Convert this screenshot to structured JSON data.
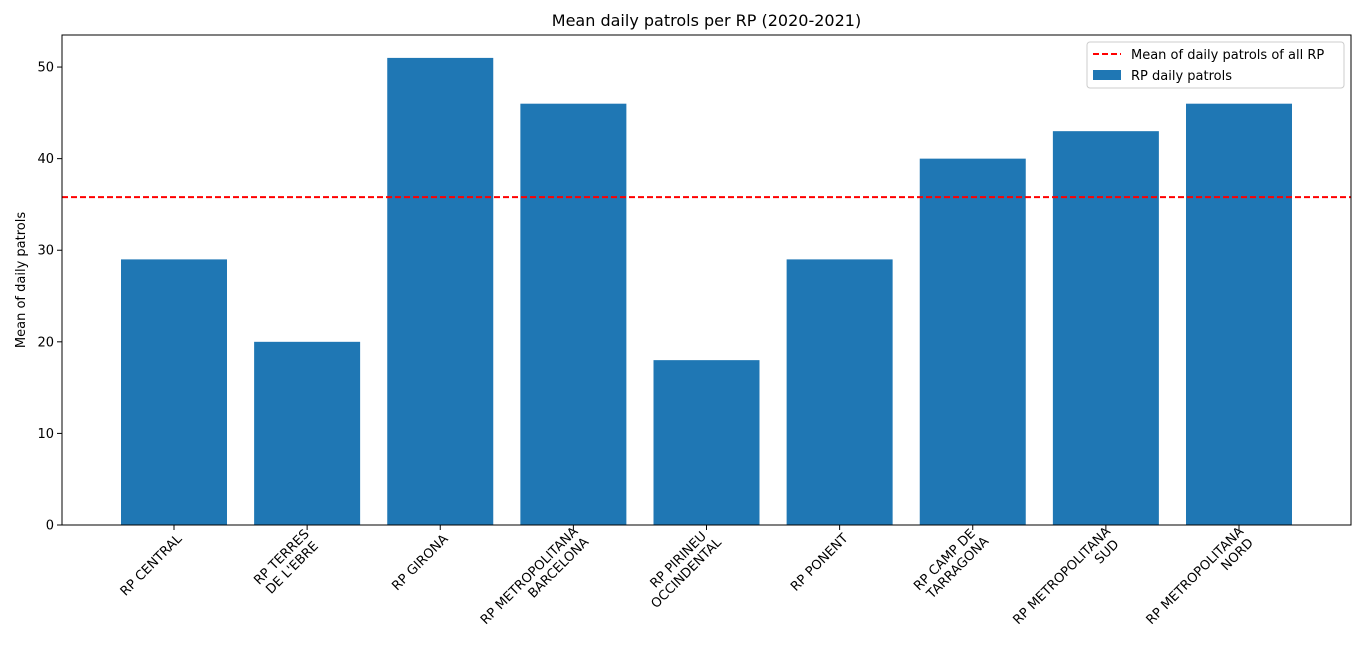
{
  "chart_data": {
    "type": "bar",
    "title": "Mean daily patrols per RP (2020-2021)",
    "xlabel": "",
    "ylabel": "Mean of daily patrols",
    "categories": [
      [
        "RP CENTRAL"
      ],
      [
        "RP TERRES",
        "DE L'EBRE"
      ],
      [
        "RP GIRONA"
      ],
      [
        "RP METROPOLITANA",
        "BARCELONA"
      ],
      [
        "RP PIRINEU",
        "OCCINDENTAL"
      ],
      [
        "RP PONENT"
      ],
      [
        "RP CAMP DE",
        "TARRAGONA"
      ],
      [
        "RP METROPOLITANA",
        "SUD"
      ],
      [
        "RP METROPOLITANA",
        "NORD"
      ]
    ],
    "series": [
      {
        "name": "RP daily patrols",
        "values": [
          29,
          20,
          51,
          46,
          18,
          29,
          40,
          43,
          46
        ],
        "color": "#1f77b4"
      }
    ],
    "reference_line": {
      "name": "Mean of daily patrols of all RP",
      "value": 35.8,
      "color": "#ff0000",
      "style": "dashed"
    },
    "ylim": [
      0,
      53.5
    ],
    "yticks": [
      0,
      10,
      20,
      30,
      40,
      50
    ],
    "grid": false,
    "legend_position": "top-right"
  }
}
